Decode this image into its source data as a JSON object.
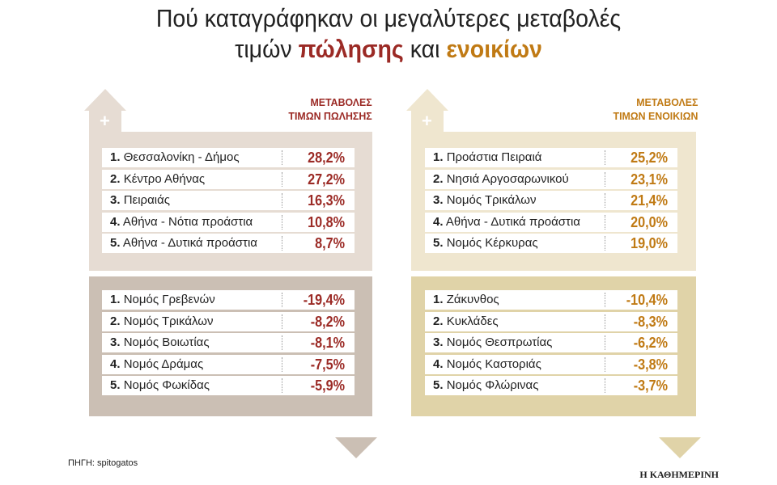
{
  "title": {
    "line1": "Πού καταγράφηκαν οι μεγαλύτερες μεταβολές",
    "line2_pre": "τιμών",
    "line2_hl1": "πώλησης",
    "line2_mid": "και",
    "line2_hl2": "ενοικίων"
  },
  "colors": {
    "sale_accent": "#9b2a25",
    "rent_accent": "#c07a14",
    "sale_top_bg": "#e6dcd3",
    "sale_bottom_bg": "#cbbfb4",
    "rent_top_bg": "#efe6cf",
    "rent_bottom_bg": "#e0d3a8"
  },
  "symbols": {
    "plus": "+",
    "minus": "−"
  },
  "chart_data": [
    {
      "type": "table",
      "title_line1": "ΜΕΤΑΒΟΛΕΣ",
      "title_line2": "ΤΙΜΩΝ ΠΩΛΗΣΗΣ",
      "top": [
        {
          "rank": "1.",
          "name": "Θεσσαλονίκη - Δήμος",
          "value": "28,2%"
        },
        {
          "rank": "2.",
          "name": "Κέντρο Αθήνας",
          "value": "27,2%"
        },
        {
          "rank": "3.",
          "name": "Πειραιάς",
          "value": "16,3%"
        },
        {
          "rank": "4.",
          "name": "Αθήνα - Νότια προάστια",
          "value": "10,8%"
        },
        {
          "rank": "5.",
          "name": "Αθήνα - Δυτικά προάστια",
          "value": "8,7%"
        }
      ],
      "bottom": [
        {
          "rank": "1.",
          "name": "Νομός Γρεβενών",
          "value": "-19,4%"
        },
        {
          "rank": "2.",
          "name": "Νομός Τρικάλων",
          "value": "-8,2%"
        },
        {
          "rank": "3.",
          "name": "Νομός Βοιωτίας",
          "value": "-8,1%"
        },
        {
          "rank": "4.",
          "name": "Νομός Δράμας",
          "value": "-7,5%"
        },
        {
          "rank": "5.",
          "name": "Νομός Φωκίδας",
          "value": "-5,9%"
        }
      ]
    },
    {
      "type": "table",
      "title_line1": "ΜΕΤΑΒΟΛΕΣ",
      "title_line2": "ΤΙΜΩΝ ΕΝΟΙΚΙΩΝ",
      "top": [
        {
          "rank": "1.",
          "name": "Προάστια Πειραιά",
          "value": "25,2%"
        },
        {
          "rank": "2.",
          "name": "Νησιά Αργοσαρωνικού",
          "value": "23,1%"
        },
        {
          "rank": "3.",
          "name": "Νομός Τρικάλων",
          "value": "21,4%"
        },
        {
          "rank": "4.",
          "name": "Αθήνα - Δυτικά προάστια",
          "value": "20,0%"
        },
        {
          "rank": "5.",
          "name": "Νομός Κέρκυρας",
          "value": "19,0%"
        }
      ],
      "bottom": [
        {
          "rank": "1.",
          "name": "Ζάκυνθος",
          "value": "-10,4%"
        },
        {
          "rank": "2.",
          "name": "Κυκλάδες",
          "value": "-8,3%"
        },
        {
          "rank": "3.",
          "name": "Νομός Θεσπρωτίας",
          "value": "-6,2%"
        },
        {
          "rank": "4.",
          "name": "Νομός Καστοριάς",
          "value": "-3,8%"
        },
        {
          "rank": "5.",
          "name": "Νομός Φλώρινας",
          "value": "-3,7%"
        }
      ]
    }
  ],
  "footer": {
    "source": "ΠΗΓΗ: spitogatos",
    "brand": "Η ΚΑΘΗΜΕΡΙΝΗ"
  }
}
